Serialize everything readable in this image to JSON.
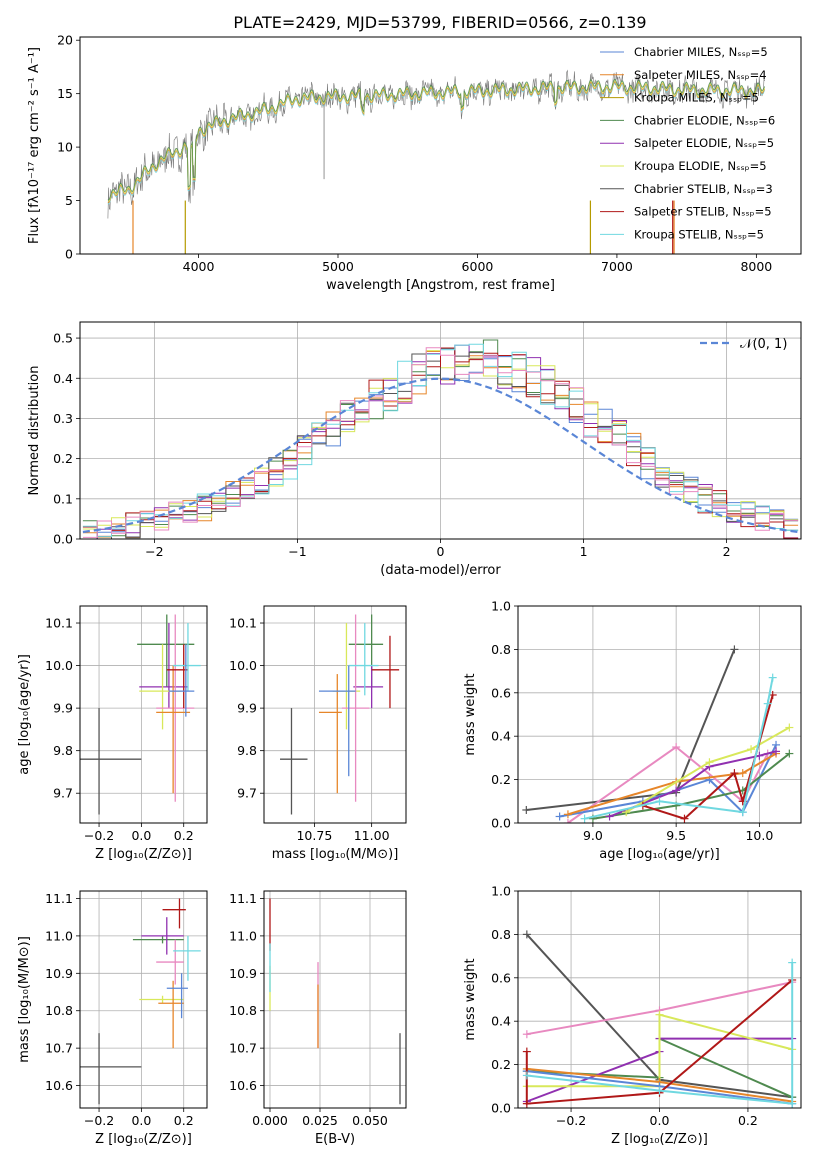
{
  "figure_title": "PLATE=2429, MJD=53799, FIBERID=0566, z=0.139",
  "colors": {
    "cm": "#5a86d6",
    "sm": "#e6862a",
    "km": "#b59a00",
    "ce": "#4f8a4f",
    "se": "#9030b0",
    "ke": "#d8e85a",
    "cs": "#555555",
    "ss": "#b01818",
    "ks": "#70d8e0",
    "pink": "#e889c0",
    "norm": "#5a86d6"
  },
  "chart_data": [
    {
      "type": "line",
      "title": "PLATE=2429, MJD=53799, FIBERID=0566, z=0.139",
      "xlabel": "wavelength [Angstrom, rest frame]",
      "ylabel": "Flux [fλ10⁻¹⁷ erg cm⁻² s⁻¹ A⁻¹]",
      "xlim": [
        3150,
        8320
      ],
      "ylim": [
        0,
        20.3
      ],
      "xticks": [
        "4000",
        "5000",
        "6000",
        "7000",
        "8000"
      ],
      "yticks": [
        "0",
        "5",
        "10",
        "15",
        "20"
      ],
      "legend": "top-right",
      "grid": false,
      "series": [
        {
          "name": "Chabrier MILES, Nₛₛₚ=5"
        },
        {
          "name": "Salpeter MILES, Nₛₛₚ=4"
        },
        {
          "name": "Kroupa MILES, Nₛₛₚ=5"
        },
        {
          "name": "Chabrier ELODIE, Nₛₛₚ=6"
        },
        {
          "name": "Salpeter ELODIE, Nₛₛₚ=5"
        },
        {
          "name": "Kroupa ELODIE, Nₛₛₚ=5"
        },
        {
          "name": "Chabrier STELIB, Nₛₛₚ=3"
        },
        {
          "name": "Salpeter STELIB, Nₛₛₚ=5"
        },
        {
          "name": "Kroupa STELIB, Nₛₛₚ=5"
        }
      ],
      "continuum_x": [
        3350,
        3500,
        3700,
        3900,
        3950,
        4000,
        4200,
        4500,
        4700,
        5000,
        5300,
        5600,
        6000,
        6500,
        7000,
        7500,
        8050
      ],
      "continuum_y": [
        5.5,
        6.0,
        8.5,
        10.0,
        9.5,
        11.5,
        12.5,
        13.5,
        14.5,
        14.7,
        14.8,
        15.0,
        15.2,
        15.5,
        15.6,
        15.3,
        15.2
      ]
    },
    {
      "type": "area",
      "xlabel": "(data-model)/error",
      "ylabel": "Normed distribution",
      "xlim": [
        -2.52,
        2.52
      ],
      "ylim": [
        0,
        0.54
      ],
      "xticks": [
        "−2",
        "−1",
        "0",
        "1",
        "2"
      ],
      "yticks": [
        "0.0",
        "0.1",
        "0.2",
        "0.3",
        "0.4",
        "0.5"
      ],
      "legend": "top-right",
      "legend_label": "𝒩(0, 1)",
      "grid": true,
      "bin_edges_start": -2.5,
      "bin_width": 0.1,
      "base_hist": [
        0.02,
        0.02,
        0.03,
        0.035,
        0.04,
        0.05,
        0.06,
        0.07,
        0.08,
        0.09,
        0.11,
        0.13,
        0.15,
        0.17,
        0.19,
        0.22,
        0.25,
        0.27,
        0.3,
        0.32,
        0.35,
        0.37,
        0.39,
        0.41,
        0.43,
        0.44,
        0.45,
        0.45,
        0.44,
        0.43,
        0.42,
        0.4,
        0.38,
        0.35,
        0.33,
        0.3,
        0.28,
        0.25,
        0.22,
        0.19,
        0.16,
        0.14,
        0.12,
        0.1,
        0.09,
        0.07,
        0.06,
        0.05,
        0.04,
        0.03
      ]
    },
    {
      "type": "scatter",
      "xlabel": "Z [log₁₀(Z/Z⊙)]",
      "ylabel": "age  [log₁₀(age/yr)]",
      "xlim": [
        -0.29,
        0.31
      ],
      "ylim": [
        9.63,
        10.14
      ],
      "xticks": [
        "−0.2",
        "0.0",
        "0.2"
      ],
      "yticks": [
        "9.7",
        "9.8",
        "9.9",
        "10.0",
        "10.1"
      ],
      "grid": true,
      "points": [
        {
          "c": "cs",
          "x": -0.2,
          "y": 9.78,
          "xlo": -0.32,
          "xhi": 0.0,
          "ylo": 9.65,
          "yhi": 9.9
        },
        {
          "c": "ce",
          "x": 0.12,
          "y": 10.05,
          "xlo": -0.02,
          "xhi": 0.25,
          "ylo": 9.95,
          "yhi": 10.12
        },
        {
          "c": "se",
          "x": 0.13,
          "y": 9.95,
          "xlo": -0.01,
          "xhi": 0.22,
          "ylo": 9.9,
          "yhi": 10.1
        },
        {
          "c": "ke",
          "x": 0.1,
          "y": 9.94,
          "xlo": -0.01,
          "xhi": 0.19,
          "ylo": 9.85,
          "yhi": 10.05
        },
        {
          "c": "pink",
          "x": 0.16,
          "y": 9.9,
          "xlo": 0.07,
          "xhi": 0.25,
          "ylo": 9.68,
          "yhi": 10.12
        },
        {
          "c": "sm",
          "x": 0.15,
          "y": 9.89,
          "xlo": 0.07,
          "xhi": 0.23,
          "ylo": 9.7,
          "yhi": 10.0
        },
        {
          "c": "ss",
          "x": 0.2,
          "y": 9.99,
          "xlo": 0.12,
          "xhi": 0.22,
          "ylo": 9.9,
          "yhi": 10.05
        },
        {
          "c": "ks",
          "x": 0.22,
          "y": 10.0,
          "xlo": 0.15,
          "xhi": 0.28,
          "ylo": 9.94,
          "yhi": 10.1
        },
        {
          "c": "cm",
          "x": 0.21,
          "y": 9.94,
          "xlo": 0.13,
          "xhi": 0.25,
          "ylo": 9.88,
          "yhi": 10.05
        }
      ]
    },
    {
      "type": "scatter",
      "xlabel": "mass [log₁₀(M/M⊙)]",
      "ylabel": "",
      "xlim": [
        10.53,
        11.15
      ],
      "ylim": [
        9.63,
        10.14
      ],
      "xticks": [
        "10.75",
        "11.00"
      ],
      "yticks": [
        "9.7",
        "9.8",
        "9.9",
        "10.0",
        "10.1"
      ],
      "grid": true,
      "points": [
        {
          "c": "cs",
          "x": 10.65,
          "y": 9.78,
          "xlo": 10.6,
          "xhi": 10.72,
          "ylo": 9.65,
          "yhi": 9.9
        },
        {
          "c": "ce",
          "x": 11.0,
          "y": 10.05,
          "xlo": 10.9,
          "xhi": 11.05,
          "ylo": 9.95,
          "yhi": 10.12
        },
        {
          "c": "se",
          "x": 11.0,
          "y": 9.95,
          "xlo": 10.92,
          "xhi": 11.05,
          "ylo": 9.9,
          "yhi": 10.0
        },
        {
          "c": "ke",
          "x": 10.89,
          "y": 9.94,
          "xlo": 10.83,
          "xhi": 10.95,
          "ylo": 9.85,
          "yhi": 10.1
        },
        {
          "c": "pink",
          "x": 10.93,
          "y": 9.9,
          "xlo": 10.87,
          "xhi": 10.99,
          "ylo": 9.68,
          "yhi": 10.12
        },
        {
          "c": "sm",
          "x": 10.85,
          "y": 9.89,
          "xlo": 10.77,
          "xhi": 10.87,
          "ylo": 9.7,
          "yhi": 9.98
        },
        {
          "c": "ss",
          "x": 11.08,
          "y": 9.99,
          "xlo": 11.0,
          "xhi": 11.12,
          "ylo": 9.9,
          "yhi": 10.07
        },
        {
          "c": "ks",
          "x": 10.97,
          "y": 10.0,
          "xlo": 10.9,
          "xhi": 11.03,
          "ylo": 9.93,
          "yhi": 10.1
        },
        {
          "c": "cm",
          "x": 10.9,
          "y": 9.94,
          "xlo": 10.77,
          "xhi": 10.93,
          "ylo": 9.74,
          "yhi": 10.0
        }
      ]
    },
    {
      "type": "line",
      "xlabel": "age  [log₁₀(age/yr)]",
      "ylabel": "mass weight",
      "xlim": [
        8.55,
        10.25
      ],
      "ylim": [
        0,
        1.0
      ],
      "xticks": [
        "9.0",
        "9.5",
        "10.0"
      ],
      "yticks": [
        "0.0",
        "0.2",
        "0.4",
        "0.6",
        "0.8",
        "1.0"
      ],
      "grid": true,
      "series": [
        {
          "c": "cs",
          "x": [
            8.6,
            9.5,
            9.85
          ],
          "y": [
            0.06,
            0.14,
            0.8
          ]
        },
        {
          "c": "pink",
          "x": [
            8.85,
            9.5,
            9.9,
            10.05
          ],
          "y": [
            0.0,
            0.35,
            0.1,
            0.32
          ]
        },
        {
          "c": "cm",
          "x": [
            8.8,
            9.3,
            9.7,
            9.9,
            10.1
          ],
          "y": [
            0.03,
            0.1,
            0.2,
            0.05,
            0.36
          ]
        },
        {
          "c": "sm",
          "x": [
            8.85,
            9.5,
            9.9,
            10.1
          ],
          "y": [
            0.04,
            0.19,
            0.23,
            0.32
          ]
        },
        {
          "c": "ce",
          "x": [
            9.0,
            9.5,
            9.9,
            10.18
          ],
          "y": [
            0.02,
            0.08,
            0.15,
            0.32
          ]
        },
        {
          "c": "se",
          "x": [
            9.1,
            9.5,
            9.7,
            10.0,
            10.1
          ],
          "y": [
            0.03,
            0.15,
            0.26,
            0.31,
            0.33
          ]
        },
        {
          "c": "ke",
          "x": [
            9.2,
            9.7,
            9.95,
            10.18
          ],
          "y": [
            0.05,
            0.28,
            0.34,
            0.44
          ]
        },
        {
          "c": "ss",
          "x": [
            9.3,
            9.55,
            9.85,
            9.9,
            10.08
          ],
          "y": [
            0.08,
            0.02,
            0.23,
            0.1,
            0.59
          ]
        },
        {
          "c": "ks",
          "x": [
            8.95,
            9.4,
            9.9,
            10.05,
            10.08
          ],
          "y": [
            0.02,
            0.1,
            0.05,
            0.55,
            0.67
          ]
        }
      ]
    },
    {
      "type": "scatter",
      "xlabel": "Z [log₁₀(Z/Z⊙)]",
      "ylabel": "mass [log₁₀(M/M⊙)]",
      "xlim": [
        -0.29,
        0.31
      ],
      "ylim": [
        10.54,
        11.12
      ],
      "xticks": [
        "−0.2",
        "0.0",
        "0.2"
      ],
      "yticks": [
        "10.6",
        "10.7",
        "10.8",
        "10.9",
        "11.0",
        "11.1"
      ],
      "grid": true,
      "points": [
        {
          "c": "cs",
          "x": -0.2,
          "y": 10.65,
          "xlo": -0.32,
          "xhi": 0.0,
          "ylo": 10.55,
          "yhi": 10.74
        },
        {
          "c": "ce",
          "x": 0.1,
          "y": 10.99,
          "xlo": -0.04,
          "xhi": 0.2,
          "ylo": 10.98,
          "yhi": 11.0
        },
        {
          "c": "se",
          "x": 0.12,
          "y": 11.0,
          "xlo": -0.0,
          "xhi": 0.2,
          "ylo": 10.95,
          "yhi": 11.05
        },
        {
          "c": "ke",
          "x": 0.1,
          "y": 10.83,
          "xlo": -0.01,
          "xhi": 0.2,
          "ylo": 10.82,
          "yhi": 10.84
        },
        {
          "c": "pink",
          "x": 0.16,
          "y": 10.93,
          "xlo": 0.07,
          "xhi": 0.2,
          "ylo": 10.87,
          "yhi": 10.99
        },
        {
          "c": "sm",
          "x": 0.15,
          "y": 10.82,
          "xlo": 0.08,
          "xhi": 0.2,
          "ylo": 10.7,
          "yhi": 10.88
        },
        {
          "c": "ss",
          "x": 0.18,
          "y": 11.07,
          "xlo": 0.1,
          "xhi": 0.21,
          "ylo": 11.02,
          "yhi": 11.1
        },
        {
          "c": "ks",
          "x": 0.22,
          "y": 10.96,
          "xlo": 0.15,
          "xhi": 0.28,
          "ylo": 10.88,
          "yhi": 11.0
        },
        {
          "c": "cm",
          "x": 0.19,
          "y": 10.86,
          "xlo": 0.12,
          "xhi": 0.22,
          "ylo": 10.78,
          "yhi": 10.9
        }
      ]
    },
    {
      "type": "scatter",
      "xlabel": "E(B-V)",
      "ylabel": "",
      "xlim": [
        -0.003,
        0.068
      ],
      "ylim": [
        10.54,
        11.12
      ],
      "xticks": [
        "0.000",
        "0.025",
        "0.050"
      ],
      "yticks": [
        "10.6",
        "10.7",
        "10.8",
        "10.9",
        "11.0",
        "11.1"
      ],
      "grid": true,
      "points": [
        {
          "c": "cs",
          "x": 0.065,
          "y": 10.65,
          "ylo": 10.55,
          "yhi": 10.74
        },
        {
          "c": "ss",
          "x": 0.0,
          "y": 11.0,
          "ylo": 10.96,
          "yhi": 11.1
        },
        {
          "c": "ke",
          "x": 0.0,
          "y": 10.85,
          "ylo": 10.8,
          "yhi": 10.92
        },
        {
          "c": "ks",
          "x": 0.0,
          "y": 10.9,
          "ylo": 10.85,
          "yhi": 10.98
        },
        {
          "c": "pink",
          "x": 0.024,
          "y": 10.8,
          "ylo": 10.7,
          "yhi": 10.93
        },
        {
          "c": "sm",
          "x": 0.024,
          "y": 10.78,
          "ylo": 10.7,
          "yhi": 10.87
        }
      ]
    },
    {
      "type": "line",
      "xlabel": "Z [log₁₀(Z/Z⊙)]",
      "ylabel": "mass weight",
      "xlim": [
        -0.32,
        0.32
      ],
      "ylim": [
        0,
        1.0
      ],
      "xticks": [
        "−0.2",
        "0.0",
        "0.2"
      ],
      "yticks": [
        "0.0",
        "0.2",
        "0.4",
        "0.6",
        "0.8",
        "1.0"
      ],
      "grid": true,
      "series": [
        {
          "c": "cs",
          "x": [
            -0.3,
            0.0,
            0.3
          ],
          "y": [
            0.8,
            0.13,
            0.05
          ]
        },
        {
          "c": "pink",
          "x": [
            -0.3,
            0.0,
            0.3
          ],
          "y": [
            0.34,
            0.45,
            0.58
          ]
        },
        {
          "c": "ce",
          "x": [
            -0.3,
            0.0,
            0.0,
            0.3
          ],
          "y": [
            0.17,
            0.14,
            0.32,
            0.05
          ]
        },
        {
          "c": "se",
          "x": [
            -0.3,
            0.0,
            0.0,
            0.3
          ],
          "y": [
            0.03,
            0.26,
            0.32,
            0.32
          ]
        },
        {
          "c": "ke",
          "x": [
            -0.3,
            0.0,
            0.0,
            0.3
          ],
          "y": [
            0.1,
            0.1,
            0.43,
            0.27
          ]
        },
        {
          "c": "sm",
          "x": [
            -0.3,
            0.0,
            0.3
          ],
          "y": [
            0.18,
            0.12,
            0.03
          ]
        },
        {
          "c": "cm",
          "x": [
            -0.3,
            0.0,
            0.3
          ],
          "y": [
            0.17,
            0.1,
            0.02
          ]
        },
        {
          "c": "ss",
          "x": [
            -0.3,
            -0.3,
            0.0,
            0.3
          ],
          "y": [
            0.26,
            0.02,
            0.07,
            0.59
          ]
        },
        {
          "c": "ks",
          "x": [
            -0.3,
            0.0,
            0.3,
            0.3
          ],
          "y": [
            0.15,
            0.08,
            0.02,
            0.67
          ]
        }
      ]
    }
  ]
}
